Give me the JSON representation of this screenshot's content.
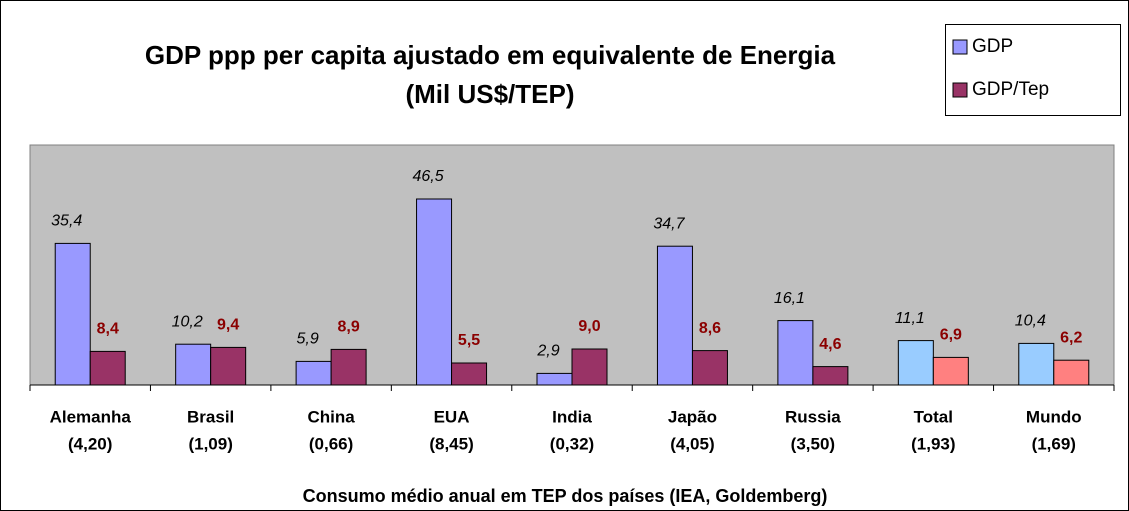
{
  "chart_data": {
    "type": "bar",
    "title": "GDP ppp per capita ajustado em equivalente de Energia",
    "subtitle": "(Mil US$/TEP)",
    "x_label": "Consumo médio anual em TEP dos países (IEA, Goldemberg)",
    "categories": [
      "Alemanha",
      "Brasil",
      "China",
      "EUA",
      "India",
      "Japão",
      "Russia",
      "Total",
      "Mundo"
    ],
    "category_notes": [
      "(4,20)",
      "(1,09)",
      "(0,66)",
      "(8,45)",
      "(0,32)",
      "(4,05)",
      "(3,50)",
      "(1,93)",
      "(1,69)"
    ],
    "series": [
      {
        "name": "GDP",
        "color": "#9999ff",
        "point_colors": [
          "#9999ff",
          "#9999ff",
          "#9999ff",
          "#9999ff",
          "#9999ff",
          "#9999ff",
          "#9999ff",
          "#99ccff",
          "#99ccff"
        ],
        "values": [
          35.4,
          10.2,
          5.9,
          46.5,
          2.9,
          34.7,
          16.1,
          11.1,
          10.4
        ],
        "value_labels": [
          "35,4",
          "10,2",
          "5,9",
          "46,5",
          "2,9",
          "34,7",
          "16,1",
          "11,1",
          "10,4"
        ]
      },
      {
        "name": "GDP/Tep",
        "color": "#993366",
        "point_colors": [
          "#993366",
          "#993366",
          "#993366",
          "#993366",
          "#993366",
          "#993366",
          "#993366",
          "#ff8080",
          "#ff8080"
        ],
        "values": [
          8.4,
          9.4,
          8.9,
          5.5,
          9.0,
          8.6,
          4.6,
          6.9,
          6.2
        ],
        "value_labels": [
          "8,4",
          "9,4",
          "8,9",
          "5,5",
          "9,0",
          "8,6",
          "4,6",
          "6,9",
          "6,2"
        ]
      }
    ],
    "ylim": [
      0,
      60
    ],
    "legend": "top-right"
  }
}
